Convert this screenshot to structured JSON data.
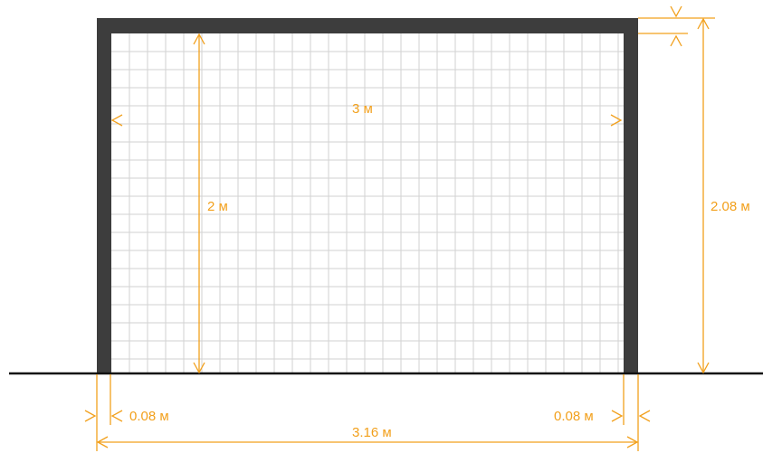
{
  "colors": {
    "frame": "#3d3d3d",
    "net": "#d2d2d2",
    "dimension": "#f2a01c",
    "ground": "#111111",
    "background": "#ffffff"
  },
  "labels": {
    "width_inner": "3 м",
    "height_inner": "2 м",
    "height_total": "2.08 м",
    "post_left": "0.08 м",
    "post_right": "0.08 м",
    "width_total": "3.16 м"
  }
}
